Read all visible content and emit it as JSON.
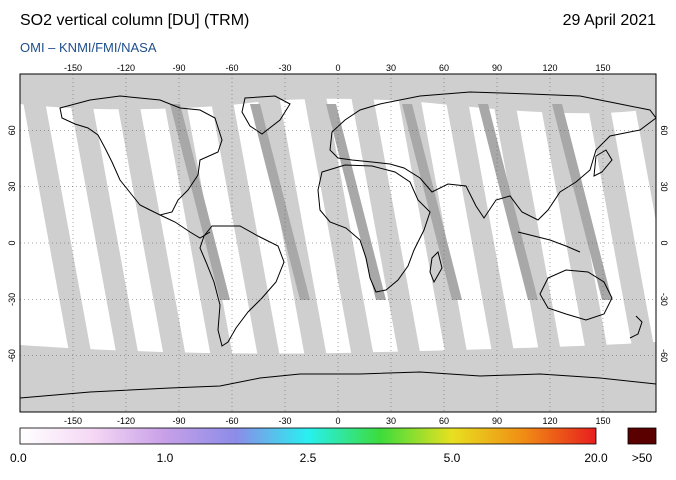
{
  "header": {
    "title": "SO2 vertical column [DU] (TRM)",
    "date": "29 April 2021",
    "credit": "OMI  –  KNMI/FMI/NASA"
  },
  "map": {
    "lon_ticks": [
      -150,
      -120,
      -90,
      -60,
      -30,
      0,
      30,
      60,
      90,
      120,
      150
    ],
    "lat_ticks": [
      60,
      30,
      0,
      -30,
      -60
    ],
    "lon_range": [
      -180,
      180
    ],
    "lat_range": [
      -90,
      90
    ],
    "grid": true,
    "colors": {
      "nodata": "#cfcfcf",
      "gap": "#a8a8a8",
      "low": "#ffffff",
      "coast": "#000000"
    }
  },
  "colorbar": {
    "labels": [
      "0.0",
      "1.0",
      "2.5",
      "5.0",
      "20.0",
      ">50"
    ],
    "stops": [
      "#ffffff",
      "#f5d8f5",
      "#c8a0e8",
      "#8c8ce8",
      "#28f0f0",
      "#3cdc3c",
      "#e8e020",
      "#f08c14",
      "#e81e1e"
    ],
    "overflow_color": "#5a0000"
  }
}
